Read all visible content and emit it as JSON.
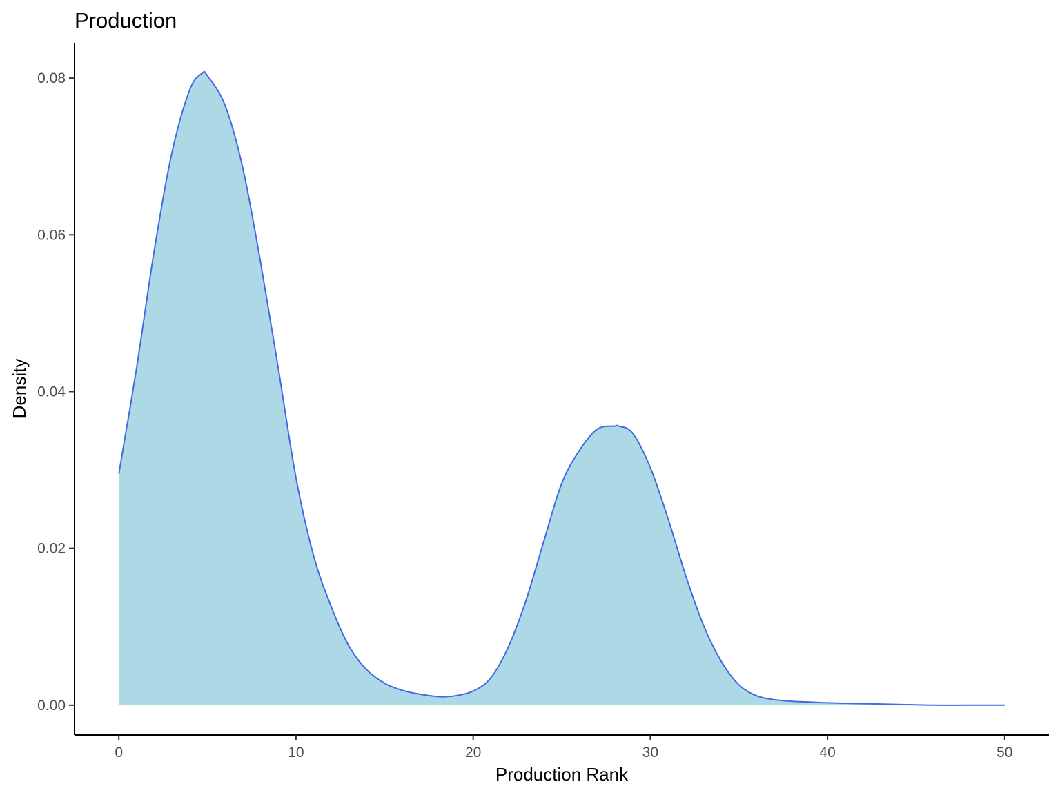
{
  "chart_data": {
    "type": "area",
    "title": "Production",
    "xlabel": "Production Rank",
    "ylabel": "Density",
    "xlim": [
      -2.5,
      52.5
    ],
    "ylim": [
      -0.0038,
      0.0845
    ],
    "xticks": [
      0,
      10,
      20,
      30,
      40,
      50
    ],
    "xtick_labels": [
      "0",
      "10",
      "20",
      "30",
      "40",
      "50"
    ],
    "yticks": [
      0,
      0.02,
      0.04,
      0.06,
      0.08
    ],
    "ytick_labels": [
      "0.00",
      "0.02",
      "0.04",
      "0.06",
      "0.08"
    ],
    "grid": false,
    "legend": "none",
    "fill_color": "#add8e6",
    "line_color": "#4169e1",
    "series": [
      {
        "x": [
          0,
          1,
          2,
          3,
          4,
          4.7,
          5,
          6,
          7,
          8,
          9,
          10,
          11,
          12,
          13,
          14,
          15,
          16,
          17,
          18,
          18.5,
          19,
          20,
          21,
          22,
          23,
          24,
          25,
          26,
          27,
          28,
          28.2,
          29,
          30,
          31,
          32,
          33,
          34,
          35,
          36,
          37,
          38,
          39,
          40,
          42,
          44,
          46,
          48,
          50
        ],
        "y": [
          0.0295,
          0.043,
          0.058,
          0.0705,
          0.0785,
          0.0806,
          0.0803,
          0.0765,
          0.0685,
          0.0565,
          0.043,
          0.029,
          0.019,
          0.0125,
          0.0075,
          0.0045,
          0.0028,
          0.0019,
          0.0014,
          0.0011,
          0.0011,
          0.0012,
          0.0018,
          0.0035,
          0.0075,
          0.0135,
          0.021,
          0.0283,
          0.0325,
          0.0352,
          0.0356,
          0.0356,
          0.0347,
          0.0303,
          0.0238,
          0.0165,
          0.0102,
          0.0056,
          0.0026,
          0.0012,
          0.0007,
          0.0005,
          0.0004,
          0.0003,
          0.0002,
          0.0001,
          0.0,
          0.0,
          0.0
        ]
      }
    ]
  }
}
